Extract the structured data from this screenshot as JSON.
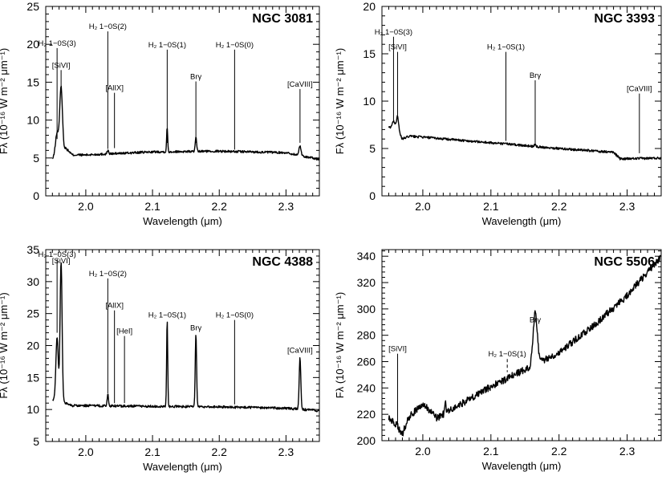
{
  "chart_data": [
    {
      "type": "line",
      "title": "NGC 3081",
      "xlabel": "Wavelength (μm)",
      "ylabel": "Fλ (10⁻¹⁶ W m⁻² μm⁻¹)",
      "xlim": [
        1.94,
        2.35
      ],
      "ylim": [
        0,
        25
      ],
      "xticks": [
        2.0,
        2.1,
        2.2,
        2.3
      ],
      "yticks": [
        0,
        5,
        10,
        15,
        20,
        25
      ],
      "continuum": [
        [
          1.95,
          4.8
        ],
        [
          1.96,
          5.5
        ],
        [
          1.97,
          6.3
        ],
        [
          1.98,
          5.4
        ],
        [
          2.0,
          5.4
        ],
        [
          2.1,
          5.8
        ],
        [
          2.2,
          5.9
        ],
        [
          2.3,
          5.7
        ],
        [
          2.35,
          4.8
        ]
      ],
      "emission": [
        [
          1.957,
          3.0,
          0.0025
        ],
        [
          1.963,
          8.5,
          0.002
        ],
        [
          2.033,
          0.5,
          0.001
        ],
        [
          2.122,
          3.2,
          0.0008
        ],
        [
          2.165,
          1.8,
          0.001
        ],
        [
          2.321,
          1.3,
          0.0015
        ]
      ],
      "lines": [
        {
          "label": "H₂ 1−0S(3)",
          "x": 1.957,
          "top": 19.5,
          "bottom": 7.5,
          "dashed": false
        },
        {
          "label": "[SiVI]",
          "x": 1.963,
          "top": 16.6,
          "bottom": 14.0,
          "dashed": false
        },
        {
          "label": "H₂ 1−0S(2)",
          "x": 2.033,
          "top": 21.7,
          "bottom": 6.2,
          "dashed": false
        },
        {
          "label": "[AlIX]",
          "x": 2.043,
          "top": 13.6,
          "bottom": 6.3,
          "dashed": false
        },
        {
          "label": "H₂ 1−0S(1)",
          "x": 2.122,
          "top": 19.3,
          "bottom": 7.0,
          "dashed": false
        },
        {
          "label": "Brγ",
          "x": 2.165,
          "top": 15.1,
          "bottom": 7.0,
          "dashed": false
        },
        {
          "label": "H₂ 1−0S(0)",
          "x": 2.223,
          "top": 19.3,
          "bottom": 6.1,
          "dashed": false
        },
        {
          "label": "[CaVIII]",
          "x": 2.321,
          "top": 14.1,
          "bottom": 7.0,
          "dashed": false
        }
      ]
    },
    {
      "type": "line",
      "title": "NGC 3393",
      "xlabel": "Wavelength (μm)",
      "ylabel": "Fλ (10⁻¹⁶ W m⁻² μm⁻¹)",
      "xlim": [
        1.94,
        2.35
      ],
      "ylim": [
        0,
        20
      ],
      "xticks": [
        2.0,
        2.1,
        2.2,
        2.3
      ],
      "yticks": [
        0,
        5,
        10,
        15,
        20
      ],
      "continuum": [
        [
          1.95,
          7.2
        ],
        [
          1.96,
          7.3
        ],
        [
          1.97,
          6.0
        ],
        [
          1.98,
          6.3
        ],
        [
          2.0,
          6.2
        ],
        [
          2.1,
          5.6
        ],
        [
          2.2,
          5.0
        ],
        [
          2.28,
          4.6
        ],
        [
          2.29,
          3.9
        ],
        [
          2.35,
          4.0
        ]
      ],
      "emission": [
        [
          1.957,
          0.6,
          0.002
        ],
        [
          1.963,
          1.5,
          0.0015
        ],
        [
          2.122,
          0.2,
          0.001
        ],
        [
          2.165,
          0.3,
          0.001
        ]
      ],
      "lines": [
        {
          "label": "H₂ 1−0S(3)",
          "x": 1.957,
          "top": 16.8,
          "bottom": 8.0,
          "dashed": false
        },
        {
          "label": "[SiVI]",
          "x": 1.963,
          "top": 15.2,
          "bottom": 8.5,
          "dashed": false
        },
        {
          "label": "H₂ 1−0S(1)",
          "x": 2.122,
          "top": 15.2,
          "bottom": 5.8,
          "dashed": false
        },
        {
          "label": "Brγ",
          "x": 2.165,
          "top": 12.2,
          "bottom": 5.4,
          "dashed": false
        },
        {
          "label": "[CaVIII]",
          "x": 2.318,
          "top": 10.8,
          "bottom": 4.5,
          "dashed": false
        }
      ]
    },
    {
      "type": "line",
      "title": "NGC 4388",
      "xlabel": "Wavelength (μm)",
      "ylabel": "Fλ (10⁻¹⁶ W m⁻² μm⁻¹)",
      "xlim": [
        1.94,
        2.35
      ],
      "ylim": [
        5,
        35
      ],
      "xticks": [
        2.0,
        2.1,
        2.2,
        2.3
      ],
      "yticks": [
        5,
        10,
        15,
        20,
        25,
        30,
        35
      ],
      "continuum": [
        [
          1.95,
          11.5
        ],
        [
          1.97,
          11.0
        ],
        [
          1.98,
          10.6
        ],
        [
          2.0,
          10.6
        ],
        [
          2.1,
          10.5
        ],
        [
          2.2,
          10.4
        ],
        [
          2.3,
          10.2
        ],
        [
          2.35,
          9.8
        ]
      ],
      "emission": [
        [
          1.957,
          10.0,
          0.0018
        ],
        [
          1.963,
          22.0,
          0.0015
        ],
        [
          2.033,
          1.8,
          0.001
        ],
        [
          2.122,
          13.5,
          0.0008
        ],
        [
          2.165,
          11.5,
          0.001
        ],
        [
          2.321,
          8.0,
          0.0012
        ]
      ],
      "lines": [
        {
          "label": "H₂ 1−0S(3)",
          "x": 1.957,
          "top": 33.5,
          "bottom": 22.0,
          "dashed": false
        },
        {
          "label": "[SiVI]",
          "x": 1.963,
          "top": 32.5,
          "bottom": 32.5,
          "dashed": false
        },
        {
          "label": "H₂ 1−0S(2)",
          "x": 2.033,
          "top": 30.5,
          "bottom": 12.5,
          "dashed": false
        },
        {
          "label": "[AlIX]",
          "x": 2.043,
          "top": 25.5,
          "bottom": 11.0,
          "dashed": false
        },
        {
          "label": "[HeI]",
          "x": 2.058,
          "top": 21.5,
          "bottom": 11.0,
          "dashed": false
        },
        {
          "label": "H₂ 1−0S(1)",
          "x": 2.122,
          "top": 24.0,
          "bottom": 23.9,
          "dashed": false
        },
        {
          "label": "Brγ",
          "x": 2.165,
          "top": 22.0,
          "bottom": 21.9,
          "dashed": false
        },
        {
          "label": "H₂ 1−0S(0)",
          "x": 2.223,
          "top": 24.0,
          "bottom": 10.8,
          "dashed": false
        },
        {
          "label": "[CaVIII]",
          "x": 2.321,
          "top": 18.5,
          "bottom": 18.4,
          "dashed": false
        }
      ]
    },
    {
      "type": "line",
      "title": "NGC 5506",
      "xlabel": "Wavelength (μm)",
      "ylabel": "Fλ (10⁻¹⁶ W m⁻² μm⁻¹)",
      "xlim": [
        1.94,
        2.35
      ],
      "ylim": [
        200,
        345
      ],
      "xticks": [
        2.0,
        2.1,
        2.2,
        2.3
      ],
      "yticks": [
        200,
        220,
        240,
        260,
        280,
        300,
        320,
        340
      ],
      "continuum": [
        [
          1.95,
          217
        ],
        [
          1.96,
          213
        ],
        [
          1.97,
          205
        ],
        [
          1.98,
          218
        ],
        [
          1.995,
          226
        ],
        [
          2.005,
          226
        ],
        [
          2.02,
          217
        ],
        [
          2.03,
          220
        ],
        [
          2.1,
          241
        ],
        [
          2.2,
          267
        ],
        [
          2.25,
          287
        ],
        [
          2.3,
          310
        ],
        [
          2.35,
          340
        ]
      ],
      "emission": [
        [
          2.165,
          40.0,
          0.003
        ],
        [
          2.033,
          10.0,
          0.0008
        ]
      ],
      "lines": [
        {
          "label": "[SiVI]",
          "x": 1.963,
          "top": 266,
          "bottom": 209,
          "dashed": false
        },
        {
          "label": "H₂ 1−0S(1)",
          "x": 2.124,
          "top": 262,
          "bottom": 252,
          "dashed": true
        },
        {
          "label": "Brγ",
          "x": 2.165,
          "top": 288,
          "bottom": 288,
          "dashed": false
        }
      ]
    }
  ]
}
